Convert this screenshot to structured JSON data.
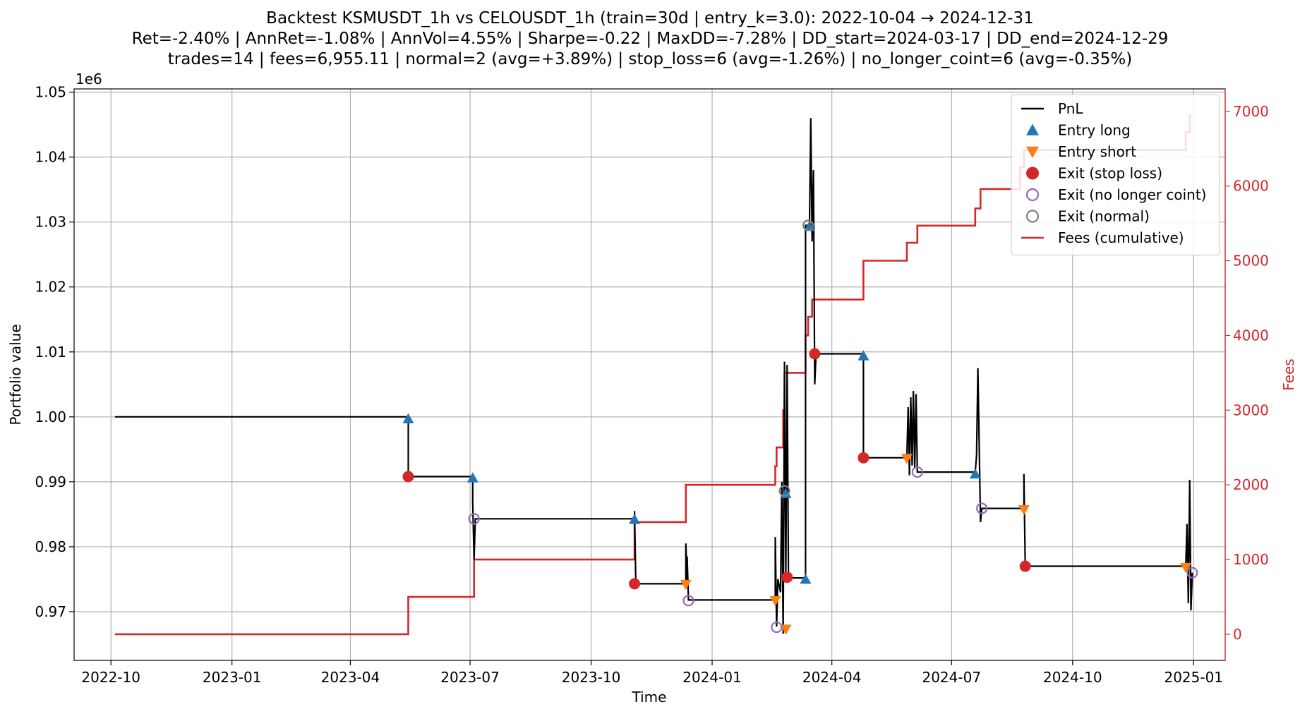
{
  "chart_data": {
    "type": "line",
    "title_lines": [
      "Backtest KSMUSDT_1h vs CELOUSDT_1h (train=30d | entry_k=3.0): 2022-10-04 → 2024-12-31",
      "Ret=-2.40% | AnnRet=-1.08% | AnnVol=4.55% | Sharpe=-0.22 | MaxDD=-7.28% | DD_start=2024-03-17 | DD_end=2024-12-29",
      "trades=14 | fees=6,955.11 | normal=2 (avg=+3.89%) | stop_loss=6 (avg=-1.26%) | no_longer_coint=6 (avg=-0.35%)"
    ],
    "xlabel": "Time",
    "ylabel": "Portfolio value",
    "ylabel_right": "Fees",
    "y_offset_label": "1e6",
    "xlim": [
      "2022-09-03",
      "2025-01-25"
    ],
    "ylim": [
      962500,
      1050500
    ],
    "ylim_right": [
      -350,
      7300
    ],
    "x_ticks": [
      "2022-10",
      "2023-01",
      "2023-04",
      "2023-07",
      "2023-10",
      "2024-01",
      "2024-04",
      "2024-07",
      "2024-10",
      "2025-01"
    ],
    "x_tick_dates": [
      "2022-10-01",
      "2023-01-01",
      "2023-04-01",
      "2023-07-01",
      "2023-10-01",
      "2024-01-01",
      "2024-04-01",
      "2024-07-01",
      "2024-10-01",
      "2025-01-01"
    ],
    "y_ticks": [
      0.97,
      0.98,
      0.99,
      1.0,
      1.01,
      1.02,
      1.03,
      1.04,
      1.05
    ],
    "y_tick_labels": [
      "0.97",
      "0.98",
      "0.99",
      "1.00",
      "1.01",
      "1.02",
      "1.03",
      "1.04",
      "1.05"
    ],
    "y_right_ticks": [
      0,
      1000,
      2000,
      3000,
      4000,
      5000,
      6000,
      7000
    ],
    "y_right_tick_labels": [
      "0",
      "1000",
      "2000",
      "3000",
      "4000",
      "5000",
      "6000",
      "7000"
    ],
    "grid": true,
    "legend_position": "top-right",
    "legend": [
      {
        "label": "PnL",
        "kind": "line",
        "color": "#000000"
      },
      {
        "label": "Entry long",
        "kind": "triangle-up",
        "color": "#1f77b4"
      },
      {
        "label": "Entry short",
        "kind": "triangle-down",
        "color": "#ff7f0e"
      },
      {
        "label": "Exit (stop loss)",
        "kind": "circle-filled",
        "color": "#d62728"
      },
      {
        "label": "Exit (no longer coint)",
        "kind": "circle-open",
        "color": "#9467bd"
      },
      {
        "label": "Exit (normal)",
        "kind": "circle-open",
        "color": "#7f7f7f"
      },
      {
        "label": "Fees (cumulative)",
        "kind": "line",
        "color": "#d62728"
      }
    ],
    "series": [
      {
        "name": "PnL",
        "color": "#000000",
        "points": [
          [
            "2022-10-04",
            1000000
          ],
          [
            "2023-05-15",
            1000000
          ],
          [
            "2023-05-15",
            990800
          ],
          [
            "2023-07-03",
            990800
          ],
          [
            "2023-07-03",
            987000
          ],
          [
            "2023-07-04",
            978000
          ],
          [
            "2023-07-05",
            984300
          ],
          [
            "2023-11-03",
            984300
          ],
          [
            "2023-11-03",
            985500
          ],
          [
            "2023-11-04",
            974300
          ],
          [
            "2023-12-12",
            974300
          ],
          [
            "2023-12-12",
            980500
          ],
          [
            "2023-12-13",
            974000
          ],
          [
            "2023-12-13",
            978500
          ],
          [
            "2023-12-14",
            971800
          ],
          [
            "2024-02-18",
            971800
          ],
          [
            "2024-02-18",
            981500
          ],
          [
            "2024-02-19",
            967700
          ],
          [
            "2024-02-20",
            975000
          ],
          [
            "2024-02-22",
            973000
          ],
          [
            "2024-02-23",
            990000
          ],
          [
            "2024-02-24",
            966600
          ],
          [
            "2024-02-25",
            1008500
          ],
          [
            "2024-02-26",
            975500
          ],
          [
            "2024-02-27",
            1008000
          ],
          [
            "2024-02-28",
            975200
          ],
          [
            "2024-03-12",
            975200
          ],
          [
            "2024-03-12",
            1029500
          ],
          [
            "2024-03-15",
            1029500
          ],
          [
            "2024-03-16",
            1046000
          ],
          [
            "2024-03-17",
            1027000
          ],
          [
            "2024-03-18",
            1038000
          ],
          [
            "2024-03-19",
            1005000
          ],
          [
            "2024-03-20",
            1009700
          ],
          [
            "2024-04-25",
            1009700
          ],
          [
            "2024-04-25",
            993700
          ],
          [
            "2024-05-28",
            993700
          ],
          [
            "2024-05-29",
            1001500
          ],
          [
            "2024-05-30",
            991000
          ],
          [
            "2024-05-31",
            1003000
          ],
          [
            "2024-06-01",
            992500
          ],
          [
            "2024-06-02",
            1004000
          ],
          [
            "2024-06-03",
            992000
          ],
          [
            "2024-06-04",
            1003500
          ],
          [
            "2024-06-05",
            991500
          ],
          [
            "2024-07-19",
            991500
          ],
          [
            "2024-07-20",
            994000
          ],
          [
            "2024-07-21",
            1007500
          ],
          [
            "2024-07-22",
            996000
          ],
          [
            "2024-07-23",
            983800
          ],
          [
            "2024-07-24",
            985900
          ],
          [
            "2024-08-25",
            985900
          ],
          [
            "2024-08-25",
            991200
          ],
          [
            "2024-08-26",
            977000
          ],
          [
            "2024-12-26",
            977000
          ],
          [
            "2024-12-27",
            983500
          ],
          [
            "2024-12-28",
            971300
          ],
          [
            "2024-12-29",
            990300
          ],
          [
            "2024-12-30",
            970200
          ],
          [
            "2024-12-31",
            976000
          ]
        ]
      },
      {
        "name": "Fees (cumulative)",
        "color": "#d62728",
        "points": [
          [
            "2022-10-04",
            0
          ],
          [
            "2023-05-15",
            0
          ],
          [
            "2023-05-15",
            500
          ],
          [
            "2023-07-04",
            500
          ],
          [
            "2023-07-04",
            1000
          ],
          [
            "2023-11-03",
            1000
          ],
          [
            "2023-11-03",
            1500
          ],
          [
            "2023-12-12",
            1500
          ],
          [
            "2023-12-12",
            2000
          ],
          [
            "2024-02-18",
            2000
          ],
          [
            "2024-02-18",
            2250
          ],
          [
            "2024-02-19",
            2250
          ],
          [
            "2024-02-19",
            2500
          ],
          [
            "2024-02-24",
            2500
          ],
          [
            "2024-02-24",
            3000
          ],
          [
            "2024-02-25",
            3000
          ],
          [
            "2024-02-25",
            3500
          ],
          [
            "2024-03-12",
            3500
          ],
          [
            "2024-03-12",
            4000
          ],
          [
            "2024-03-14",
            4000
          ],
          [
            "2024-03-14",
            4250
          ],
          [
            "2024-03-17",
            4250
          ],
          [
            "2024-03-17",
            4480
          ],
          [
            "2024-04-25",
            4480
          ],
          [
            "2024-04-25",
            5000
          ],
          [
            "2024-05-28",
            5000
          ],
          [
            "2024-05-28",
            5240
          ],
          [
            "2024-06-05",
            5240
          ],
          [
            "2024-06-05",
            5470
          ],
          [
            "2024-07-19",
            5470
          ],
          [
            "2024-07-19",
            5700
          ],
          [
            "2024-07-23",
            5700
          ],
          [
            "2024-07-23",
            5960
          ],
          [
            "2024-08-22",
            5960
          ],
          [
            "2024-08-22",
            6250
          ],
          [
            "2024-08-25",
            6250
          ],
          [
            "2024-08-25",
            6480
          ],
          [
            "2024-12-26",
            6480
          ],
          [
            "2024-12-26",
            6720
          ],
          [
            "2024-12-29",
            6720
          ],
          [
            "2024-12-29",
            6955
          ]
        ]
      }
    ],
    "markers": [
      {
        "kind": "triangle-up",
        "color": "#1f77b4",
        "label": "Entry long",
        "points": [
          [
            "2023-05-15",
            999700
          ],
          [
            "2023-07-03",
            990600
          ],
          [
            "2023-11-03",
            984200
          ],
          [
            "2024-02-26",
            988200
          ],
          [
            "2024-03-12",
            975000
          ],
          [
            "2024-03-15",
            1029300
          ],
          [
            "2024-04-25",
            1009400
          ],
          [
            "2024-07-19",
            991200
          ]
        ]
      },
      {
        "kind": "triangle-down",
        "color": "#ff7f0e",
        "label": "Entry short",
        "points": [
          [
            "2023-12-12",
            974200
          ],
          [
            "2024-02-18",
            971700
          ],
          [
            "2024-02-26",
            967300
          ],
          [
            "2024-05-28",
            993600
          ],
          [
            "2024-08-25",
            985700
          ],
          [
            "2024-12-26",
            976800
          ]
        ]
      },
      {
        "kind": "circle-filled",
        "color": "#d62728",
        "label": "Exit (stop loss)",
        "points": [
          [
            "2023-05-15",
            990800
          ],
          [
            "2023-11-03",
            974300
          ],
          [
            "2024-02-27",
            975300
          ],
          [
            "2024-03-19",
            1009700
          ],
          [
            "2024-04-25",
            993700
          ],
          [
            "2024-08-26",
            977000
          ]
        ]
      },
      {
        "kind": "circle-open",
        "color": "#9467bd",
        "label": "Exit (no longer coint)",
        "points": [
          [
            "2023-07-04",
            984300
          ],
          [
            "2023-12-14",
            971700
          ],
          [
            "2024-02-19",
            967600
          ],
          [
            "2024-06-05",
            991500
          ],
          [
            "2024-07-24",
            985900
          ],
          [
            "2024-12-31",
            976000
          ]
        ]
      },
      {
        "kind": "circle-open",
        "color": "#7f7f7f",
        "label": "Exit (normal)",
        "points": [
          [
            "2024-02-25",
            988600
          ],
          [
            "2024-03-14",
            1029500
          ]
        ]
      }
    ]
  }
}
